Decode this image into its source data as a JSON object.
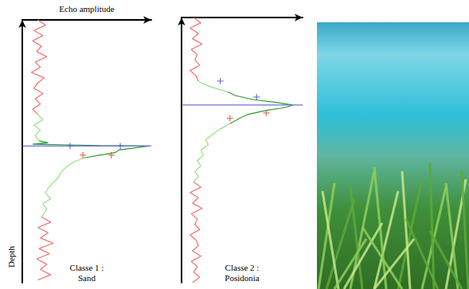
{
  "chart_data": [
    {
      "type": "line",
      "title": "Classe 1 :\nSand",
      "x_label": "Echo amplitude",
      "y_label": "Depth",
      "xlim": [
        0,
        100
      ],
      "ylim": [
        0,
        100
      ],
      "tick_labels": false,
      "grid": false,
      "series": [
        {
          "color": "#f07070",
          "line_style": "solid",
          "depth": [
            0,
            2,
            4,
            6,
            8,
            10,
            12,
            14,
            16,
            18,
            20,
            22,
            24,
            26,
            28,
            30,
            32,
            34,
            36
          ],
          "values": [
            12,
            18,
            9,
            16,
            8,
            15,
            11,
            19,
            10,
            14,
            7,
            17,
            12,
            9,
            16,
            10,
            14,
            8,
            12
          ]
        },
        {
          "color": "#93e083",
          "line_style": "solid",
          "depth": [
            36,
            38,
            40,
            42,
            44,
            46
          ],
          "values": [
            12,
            16,
            9,
            14,
            10,
            13
          ]
        },
        {
          "color": "#2e9a2e",
          "line_style": "solid",
          "depth": [
            46,
            46.8,
            47.3,
            47.8,
            48,
            48.5,
            49.5,
            50.5,
            51.5,
            52.5
          ],
          "values": [
            13,
            20,
            8,
            60,
            98,
            90,
            75,
            72,
            60,
            48
          ]
        },
        {
          "color": "#93e083",
          "line_style": "solid",
          "depth": [
            52.5,
            54,
            56,
            58,
            60,
            62,
            64,
            66,
            68,
            70,
            72,
            75
          ],
          "values": [
            48,
            40,
            34,
            30,
            28,
            24,
            20,
            18,
            22,
            16,
            19,
            15
          ]
        },
        {
          "color": "#f07070",
          "line_style": "solid",
          "depth": [
            75,
            77,
            79,
            81,
            83,
            85,
            87,
            89,
            91,
            93,
            95,
            97,
            99
          ],
          "values": [
            15,
            22,
            12,
            20,
            14,
            24,
            13,
            21,
            11,
            19,
            14,
            22,
            12
          ]
        },
        {
          "color": "#6f6fdc",
          "line_style": "solid",
          "depth": [
            48,
            48
          ],
          "values": [
            0,
            100
          ]
        },
        {
          "type": "scatter",
          "marker": "plus",
          "color": "#4a5fd0",
          "depth": [
            48,
            48
          ],
          "values": [
            37,
            76
          ]
        },
        {
          "type": "scatter",
          "marker": "plus",
          "color": "#e05030",
          "depth": [
            51.5,
            51.5
          ],
          "values": [
            47,
            69
          ]
        }
      ]
    },
    {
      "type": "line",
      "title": "Classe 2 :\nPosidonia",
      "xlim": [
        0,
        100
      ],
      "ylim": [
        0,
        100
      ],
      "tick_labels": false,
      "grid": false,
      "series": [
        {
          "color": "#f07070",
          "line_style": "solid",
          "depth": [
            0,
            2,
            4,
            6,
            8,
            10,
            12,
            14,
            16,
            18,
            20,
            22,
            24
          ],
          "values": [
            10,
            16,
            7,
            14,
            9,
            17,
            8,
            13,
            11,
            15,
            7,
            12,
            14
          ]
        },
        {
          "color": "#93e083",
          "line_style": "solid",
          "depth": [
            24,
            25.5,
            27,
            28
          ],
          "values": [
            14,
            20,
            30,
            38
          ]
        },
        {
          "color": "#2e9a2e",
          "line_style": "solid",
          "depth": [
            28,
            29.5,
            31,
            32,
            33,
            34,
            35,
            36.5,
            38,
            40
          ],
          "values": [
            38,
            45,
            60,
            78,
            92,
            85,
            70,
            55,
            48,
            40
          ]
        },
        {
          "color": "#93e083",
          "line_style": "solid",
          "depth": [
            40,
            42,
            44,
            46,
            48,
            50,
            52,
            54,
            56,
            58,
            60,
            62
          ],
          "values": [
            40,
            32,
            26,
            20,
            22,
            16,
            18,
            13,
            16,
            11,
            14,
            10
          ]
        },
        {
          "color": "#f07070",
          "line_style": "solid",
          "depth": [
            62,
            64,
            66,
            68,
            70,
            72,
            74,
            76,
            78,
            80,
            82,
            84,
            86,
            88,
            90,
            92,
            94,
            96,
            98,
            100
          ],
          "values": [
            10,
            16,
            7,
            14,
            9,
            17,
            8,
            13,
            11,
            15,
            7,
            12,
            14,
            9,
            16,
            8,
            13,
            10,
            15,
            9
          ]
        },
        {
          "color": "#6f6fdc",
          "line_style": "solid",
          "depth": [
            33,
            33
          ],
          "values": [
            0,
            100
          ]
        },
        {
          "type": "scatter",
          "marker": "plus",
          "color": "#4a5fd0",
          "depth": [
            24,
            30
          ],
          "values": [
            32,
            62
          ]
        },
        {
          "type": "scatter",
          "marker": "plus",
          "color": "#e05030",
          "depth": [
            38,
            36
          ],
          "values": [
            40,
            70
          ]
        }
      ]
    }
  ]
}
